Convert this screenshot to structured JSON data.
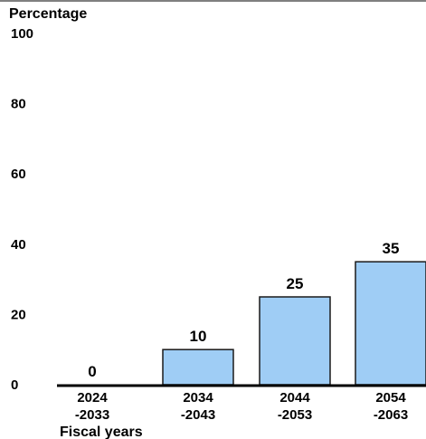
{
  "chart_data": {
    "type": "bar",
    "ylabel": "Percentage",
    "xlabel": "Fiscal years",
    "categories": [
      {
        "line1": "2024",
        "line2": "-2033"
      },
      {
        "line1": "2034",
        "line2": "-2043"
      },
      {
        "line1": "2044",
        "line2": "-2053"
      },
      {
        "line1": "2054",
        "line2": "-2063"
      }
    ],
    "values": [
      0,
      10,
      25,
      35
    ],
    "data_labels": [
      "0",
      "10",
      "25",
      "35"
    ],
    "ylim": [
      0,
      100
    ],
    "yticks": [
      {
        "value": 0,
        "label": "0"
      },
      {
        "value": 20,
        "label": "20"
      },
      {
        "value": 40,
        "label": "40"
      },
      {
        "value": 60,
        "label": "60"
      },
      {
        "value": 80,
        "label": "80"
      },
      {
        "value": 100,
        "label": "100"
      }
    ],
    "grid": false,
    "colors": {
      "bar_fill": "#9fcdf5",
      "bar_stroke": "#1a1a1a",
      "axis": "#000000",
      "text": "#000000"
    }
  }
}
